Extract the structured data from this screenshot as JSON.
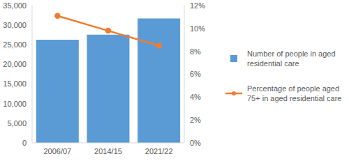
{
  "chart_data": {
    "type": "bar",
    "categories": [
      "2006/07",
      "2014/15",
      "2021/22"
    ],
    "series": [
      {
        "name": "Number of people in aged residential care",
        "type": "bar",
        "color": "#5b9bd5",
        "values": [
          26300,
          27600,
          31700
        ]
      },
      {
        "name": "Percentage of people aged 75+ in aged residential care",
        "type": "line",
        "color": "#ed7d31",
        "marker": "circle",
        "axis": "y2",
        "values": [
          11.1,
          9.8,
          8.5
        ]
      }
    ],
    "ylim": [
      0,
      35000
    ],
    "yticks": [
      0,
      {
        "value": 5000,
        "label": "5,000"
      },
      {
        "value": 10000,
        "label": "10,000"
      },
      {
        "value": 15000,
        "label": "15,000"
      },
      {
        "value": 20000,
        "label": "20,000"
      },
      {
        "value": 25000,
        "label": "25,000"
      },
      {
        "value": 30000,
        "label": "30,000"
      },
      {
        "value": 35000,
        "label": "35,000"
      }
    ],
    "y2lim": [
      0,
      12
    ],
    "y2ticks": [
      {
        "value": 0,
        "label": "0%"
      },
      {
        "value": 2,
        "label": "2%"
      },
      {
        "value": 4,
        "label": "4%"
      },
      {
        "value": 6,
        "label": "6%"
      },
      {
        "value": 8,
        "label": "8%"
      },
      {
        "value": 10,
        "label": "10%"
      },
      {
        "value": 12,
        "label": "12%"
      }
    ],
    "grid": false,
    "legend": "right"
  }
}
